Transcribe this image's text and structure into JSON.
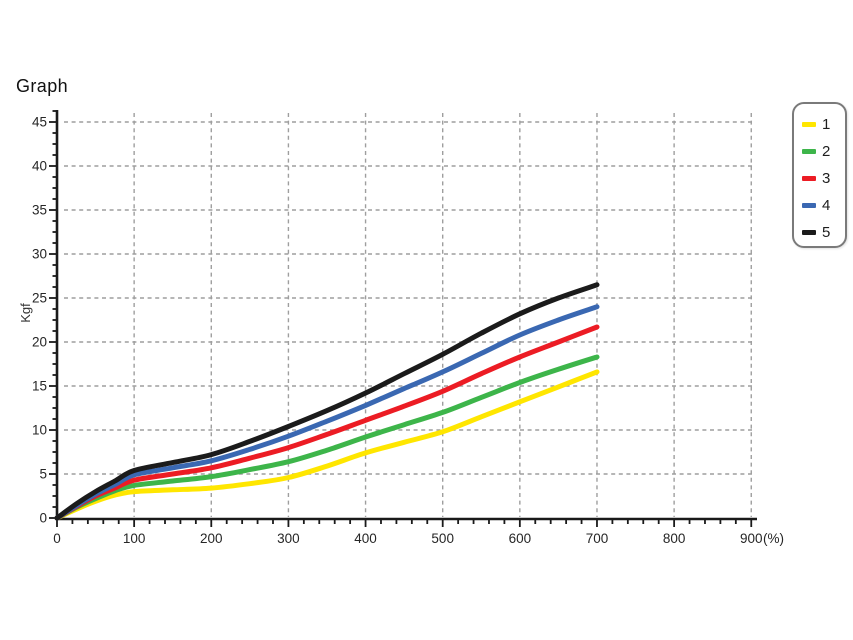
{
  "chart_data": {
    "type": "line",
    "title": "Graph",
    "ylabel": "Kgf",
    "xlabel": "(%)",
    "xlim": [
      0,
      900
    ],
    "ylim": [
      0,
      45
    ],
    "x_tick_step": 100,
    "x_minor_tick_step": 20,
    "y_tick_step": 5,
    "y_minor_tick_step": 1.25,
    "x_ticks": [
      0,
      100,
      200,
      300,
      400,
      500,
      600,
      700,
      800,
      900
    ],
    "y_ticks": [
      0,
      5,
      10,
      15,
      20,
      25,
      30,
      35,
      40,
      45
    ],
    "grid": "dashed",
    "legend_position": "right",
    "x": [
      0,
      25,
      50,
      75,
      100,
      150,
      200,
      250,
      300,
      350,
      400,
      450,
      500,
      550,
      600,
      650,
      700
    ],
    "series": [
      {
        "name": "1",
        "color": "#FFE600",
        "values": [
          0,
          1.0,
          1.9,
          2.6,
          3.0,
          3.2,
          3.4,
          3.9,
          4.6,
          5.9,
          7.4,
          8.6,
          9.8,
          11.5,
          13.2,
          14.9,
          16.6
        ]
      },
      {
        "name": "2",
        "color": "#3DB54A",
        "values": [
          0,
          1.2,
          2.2,
          3.1,
          3.7,
          4.2,
          4.7,
          5.5,
          6.4,
          7.7,
          9.2,
          10.6,
          12.0,
          13.7,
          15.4,
          16.9,
          18.3
        ]
      },
      {
        "name": "3",
        "color": "#EC1C24",
        "values": [
          0,
          1.3,
          2.5,
          3.4,
          4.3,
          5.0,
          5.7,
          6.8,
          8.0,
          9.5,
          11.1,
          12.7,
          14.4,
          16.4,
          18.3,
          20.0,
          21.7
        ]
      },
      {
        "name": "4",
        "color": "#3A68B2",
        "values": [
          0,
          1.4,
          2.7,
          3.8,
          4.9,
          5.7,
          6.5,
          7.8,
          9.3,
          11.0,
          12.8,
          14.7,
          16.6,
          18.7,
          20.8,
          22.5,
          24.0
        ]
      },
      {
        "name": "5",
        "color": "#1B1B1B",
        "values": [
          0,
          1.6,
          3.0,
          4.2,
          5.4,
          6.3,
          7.2,
          8.7,
          10.4,
          12.2,
          14.2,
          16.4,
          18.6,
          21.0,
          23.2,
          25.0,
          26.5
        ]
      }
    ]
  },
  "colors": {
    "axis": "#1a1a1a",
    "grid": "#9e9e9e",
    "tick_label": "#262626",
    "legend_border": "#7a7a7a"
  }
}
